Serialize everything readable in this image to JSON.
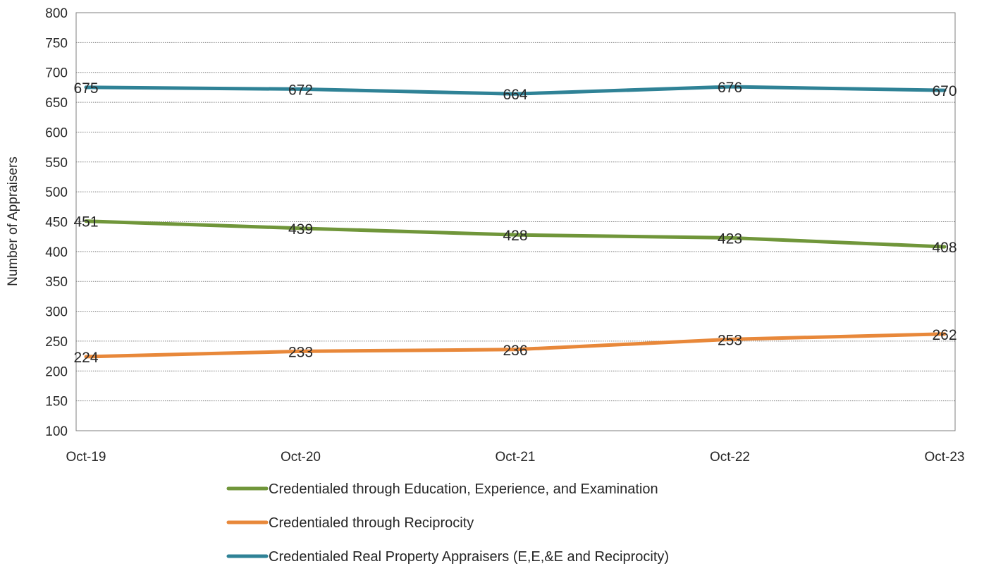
{
  "chart_data": {
    "type": "line",
    "title": "",
    "xlabel": "",
    "ylabel": "Number of Appraisers",
    "categories": [
      "Oct-19",
      "Oct-20",
      "Oct-21",
      "Oct-22",
      "Oct-23"
    ],
    "ylim": [
      100,
      800
    ],
    "y_ticks": [
      100,
      150,
      200,
      250,
      300,
      350,
      400,
      450,
      500,
      550,
      600,
      650,
      700,
      750,
      800
    ],
    "grid": true,
    "legend_position": "bottom",
    "series": [
      {
        "name": "Credentialed through Education, Experience, and Examination",
        "color": "#70963a",
        "values": [
          451,
          439,
          428,
          423,
          408
        ]
      },
      {
        "name": "Credentialed through Reciprocity",
        "color": "#e8883a",
        "values": [
          224,
          233,
          236,
          253,
          262
        ]
      },
      {
        "name": "Credentialed Real Property Appraisers (E,E,&E and Reciprocity)",
        "color": "#2f8296",
        "values": [
          675,
          672,
          664,
          676,
          670
        ]
      }
    ]
  }
}
